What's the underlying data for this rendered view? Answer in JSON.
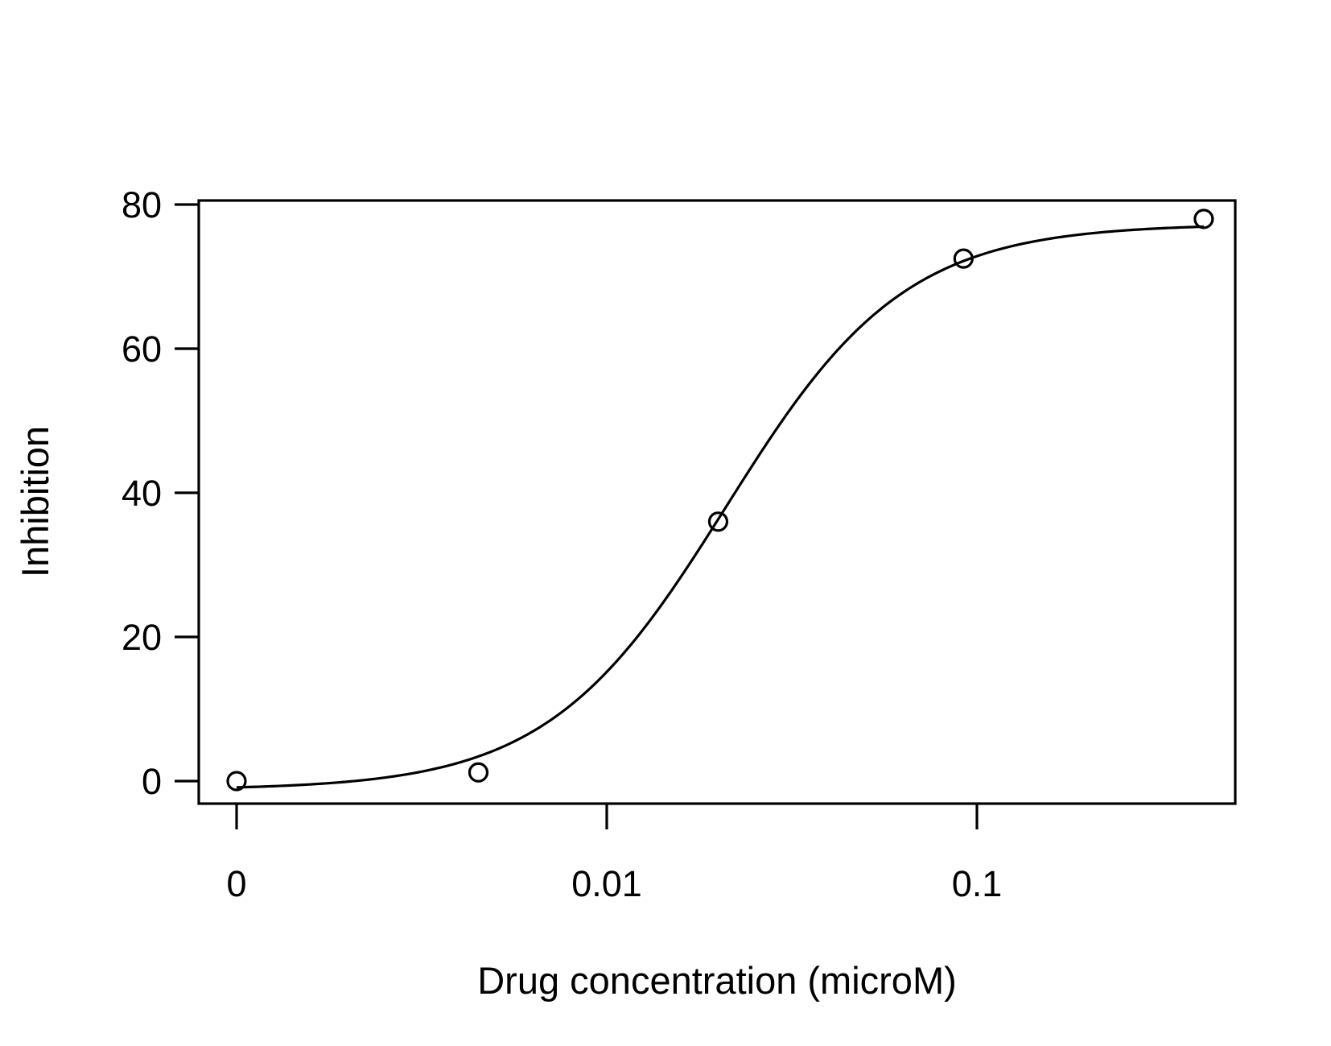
{
  "chart_data": {
    "type": "scatter",
    "title": "",
    "xlabel": "Drug concentration (microM)",
    "ylabel": "Inhibition",
    "x_scale": "log",
    "x_zero_tick_at_left": true,
    "x_ticks": [
      {
        "value": 0,
        "label": "0"
      },
      {
        "value": 0.01,
        "label": "0.01"
      },
      {
        "value": 0.1,
        "label": "0.1"
      }
    ],
    "y_ticks": [
      {
        "value": 0,
        "label": "0"
      },
      {
        "value": 20,
        "label": "20"
      },
      {
        "value": 40,
        "label": "40"
      },
      {
        "value": 60,
        "label": "60"
      },
      {
        "value": 80,
        "label": "80"
      }
    ],
    "ylim": [
      -3,
      81
    ],
    "grid": false,
    "series": [
      {
        "marker": "open-circle",
        "points": [
          {
            "x": 0,
            "y": 0
          },
          {
            "x": 0.0045,
            "y": 1.2
          },
          {
            "x": 0.02,
            "y": 36
          },
          {
            "x": 0.092,
            "y": 72.5
          },
          {
            "x": 0.41,
            "y": 78
          }
        ]
      }
    ],
    "fit_curve": {
      "type": "4-parameter logistic",
      "bottom": -1.2,
      "top": 77.3,
      "ec50": 0.021,
      "hill": 1.8,
      "x_range": [
        0.001,
        0.41
      ]
    }
  }
}
